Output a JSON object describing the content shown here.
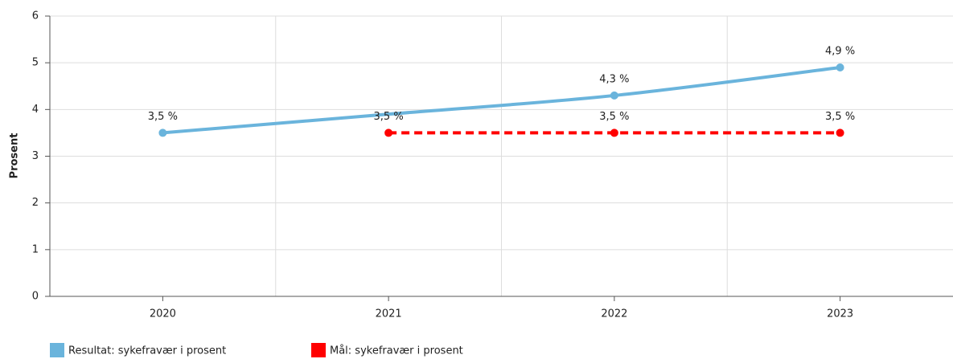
{
  "chart_data": {
    "type": "line",
    "y_label": "Prosent",
    "categories": [
      "2020",
      "2021",
      "2022",
      "2023"
    ],
    "series": [
      {
        "name": "Resultat: sykefravær i prosent",
        "color": "#6ab4dc",
        "dashed": false,
        "smooth": true,
        "values": [
          3.5,
          3.9,
          4.3,
          4.9
        ],
        "value_labels": [
          "3,5 %",
          null,
          "4,3 %",
          "4,9 %"
        ]
      },
      {
        "name": "Mål: sykefravær i prosent",
        "color": "#ff0000",
        "dashed": true,
        "smooth": false,
        "values": [
          null,
          3.5,
          3.5,
          3.5
        ],
        "value_labels": [
          null,
          "3,5 %",
          "3,5 %",
          "3,5 %"
        ]
      }
    ],
    "ylim": [
      0,
      6
    ],
    "yticks": [
      0,
      1,
      2,
      3,
      4,
      5,
      6
    ],
    "grid": true,
    "legend": "bottom-left"
  }
}
